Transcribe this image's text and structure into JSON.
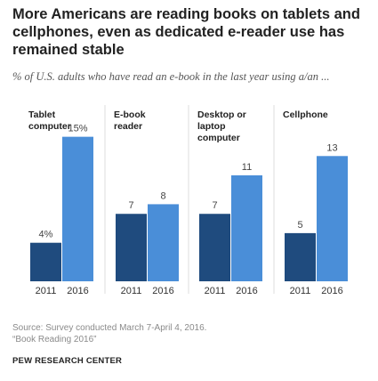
{
  "chart_data": {
    "type": "bar",
    "title": "More Americans are reading books on tablets and cellphones, even as dedicated e-reader use has remained stable",
    "subtitle": "% of U.S. adults who have read an e-book in the last year using a/an ...",
    "ylim": [
      0,
      17
    ],
    "grid": false,
    "groups": [
      {
        "label": [
          "Tablet",
          "computer"
        ],
        "values": [
          4,
          15
        ],
        "value_labels": [
          "4%",
          "15%"
        ]
      },
      {
        "label": [
          "E-book",
          "reader"
        ],
        "values": [
          7,
          8
        ],
        "value_labels": [
          "7",
          "8"
        ]
      },
      {
        "label": [
          "Desktop or",
          "laptop",
          "computer"
        ],
        "values": [
          7,
          11
        ],
        "value_labels": [
          "7",
          "11"
        ]
      },
      {
        "label": [
          "Cellphone"
        ],
        "values": [
          5,
          13
        ],
        "value_labels": [
          "5",
          "13"
        ]
      }
    ],
    "series": [
      {
        "name": "2011",
        "color": "#1f4b7e"
      },
      {
        "name": "2016",
        "color": "#4a8ed8"
      }
    ]
  },
  "footer": {
    "source": "Source: Survey conducted March 7-April 4, 2016.",
    "report": "“Book Reading 2016”",
    "brand": "PEW RESEARCH CENTER"
  }
}
